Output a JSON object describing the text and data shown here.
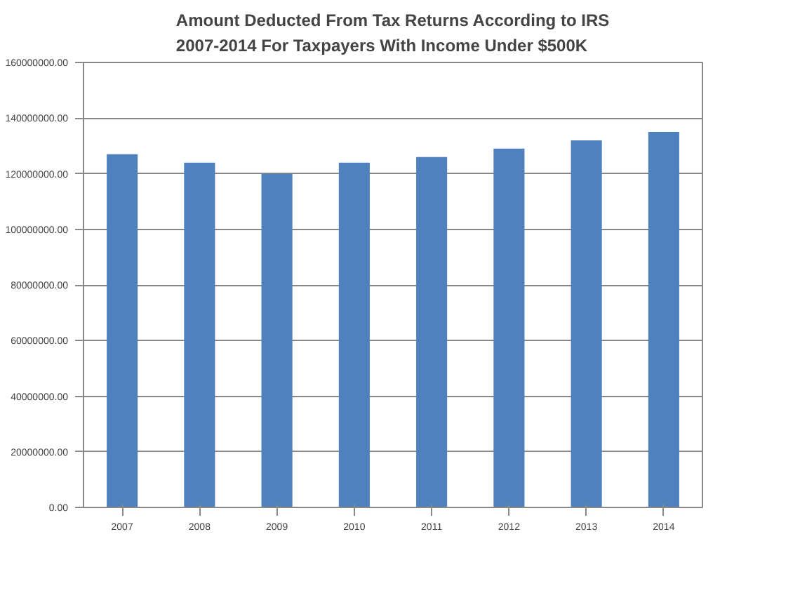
{
  "chart_data": {
    "type": "bar",
    "title": "Amount Deducted From Tax Returns According to IRS\n2007-2014 For Taxpayers With Income Under $500K",
    "categories": [
      "2007",
      "2008",
      "2009",
      "2010",
      "2011",
      "2012",
      "2013",
      "2014"
    ],
    "values": [
      127000000,
      124000000,
      120000000,
      124000000,
      126000000,
      129000000,
      132000000,
      135000000
    ],
    "color": "#4f81bd",
    "ylim": [
      0,
      160000000
    ],
    "yticks": [
      {
        "value": 0,
        "label": "0.00"
      },
      {
        "value": 20000000,
        "label": "20000000.00"
      },
      {
        "value": 40000000,
        "label": "40000000.00"
      },
      {
        "value": 60000000,
        "label": "60000000.00"
      },
      {
        "value": 80000000,
        "label": "80000000.00"
      },
      {
        "value": 100000000,
        "label": "100000000.00"
      },
      {
        "value": 120000000,
        "label": "120000000.00"
      },
      {
        "value": 140000000,
        "label": "140000000.00"
      },
      {
        "value": 160000000,
        "label": "160000000.00"
      }
    ],
    "grid": "y"
  }
}
